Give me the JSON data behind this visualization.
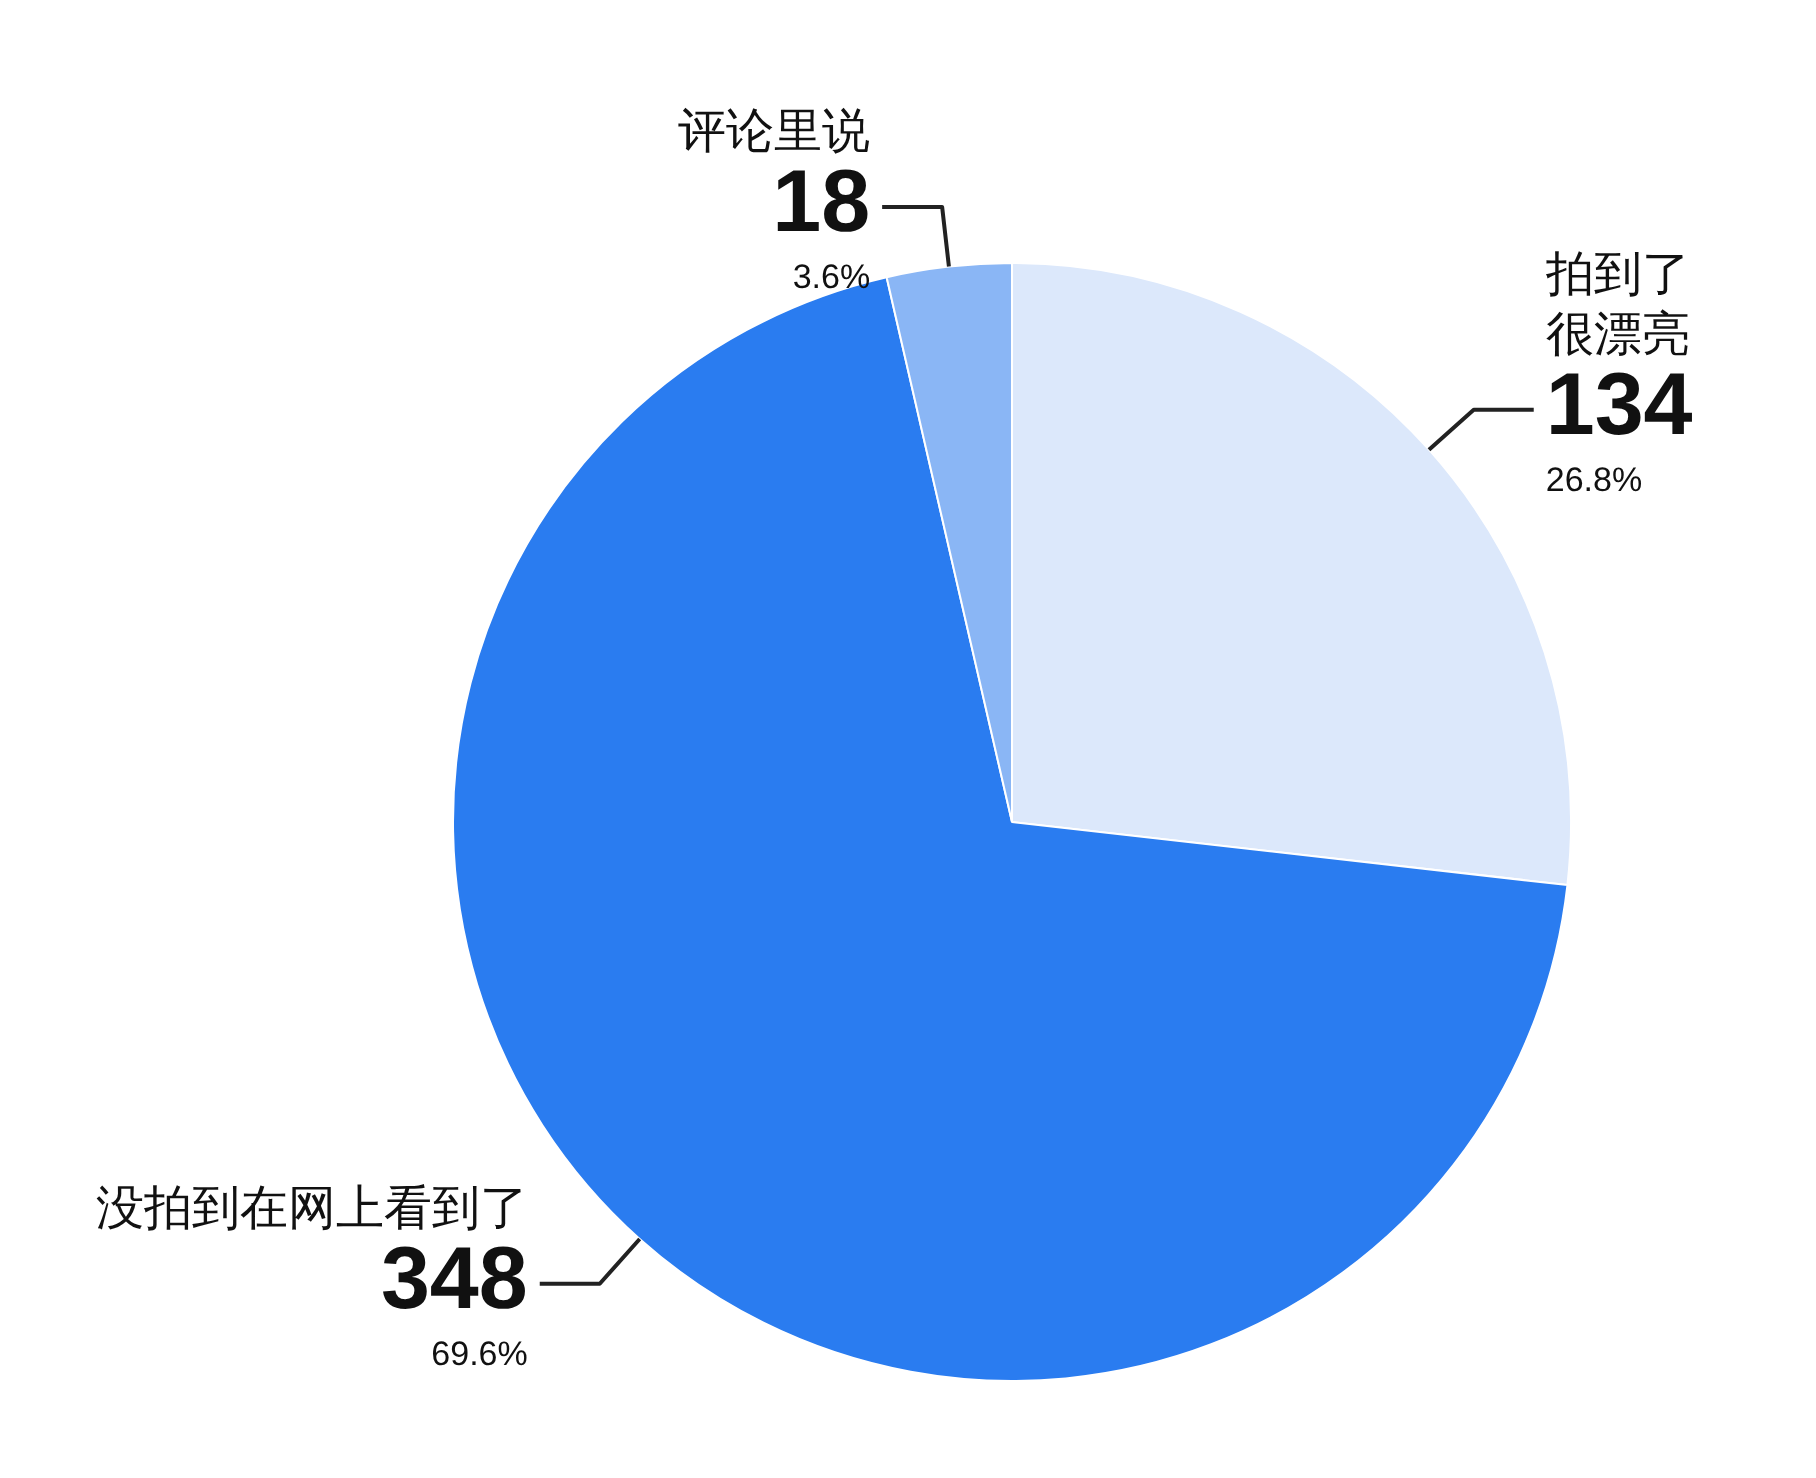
{
  "chart_data": {
    "type": "pie",
    "categories": [
      "拍到了很漂亮",
      "没拍到在网上看到了",
      "评论里说"
    ],
    "values": [
      134,
      348,
      18
    ],
    "colors": [
      "#dce8fb",
      "#2a7cf0",
      "#8ab6f5"
    ],
    "data_labels": true,
    "annotations": [
      "26.8%",
      "69.6%",
      "3.6%"
    ],
    "legend": false
  }
}
